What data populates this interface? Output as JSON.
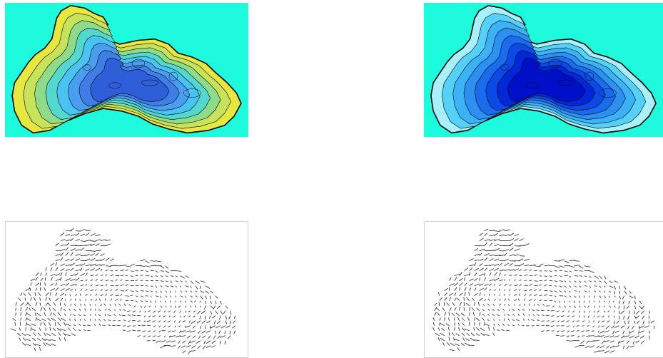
{
  "figure": {
    "panels": [
      {
        "id": "top-left",
        "kind": "contour-map",
        "palette": "elevation-green-to-blue"
      },
      {
        "id": "top-right",
        "kind": "contour-map",
        "palette": "deep-blue"
      },
      {
        "id": "bottom-left",
        "kind": "vector-field",
        "color": "#000000"
      },
      {
        "id": "bottom-right",
        "kind": "vector-field",
        "color": "#000000"
      }
    ],
    "colors": {
      "background_sea": "#1dfadc",
      "contour_line": "#000000",
      "left_palette": [
        "#2f5fd8",
        "#3f7ee6",
        "#4a9ef0",
        "#49c4f2",
        "#53d8d0",
        "#8edc8a",
        "#c8e25a",
        "#e6e840"
      ],
      "right_palette": [
        "#0010c8",
        "#0028d8",
        "#0a4ae6",
        "#1a6cee",
        "#2b90f2",
        "#3cb2f6",
        "#55d0f8",
        "#a8f0fb"
      ]
    }
  }
}
